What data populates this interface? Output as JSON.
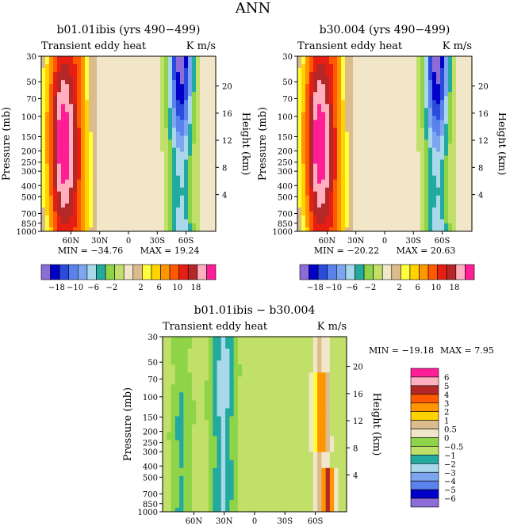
{
  "figure_title": "ANN",
  "contour_palette": [
    "#8c6cd6",
    "#0000c8",
    "#2a4bdc",
    "#5a82ec",
    "#7da6f0",
    "#a8d8ea",
    "#22aaa0",
    "#8fd448",
    "#c0e06a",
    "#f2e6c8",
    "#dcbc8c",
    "#ffff3c",
    "#ffd200",
    "#ff9600",
    "#ff5a00",
    "#e61e14",
    "#b42828",
    "#ffb0c0",
    "#ff1e96"
  ],
  "chart_data": [
    {
      "type": "heatmap",
      "title": "b01.01ibis (yrs 490−499)",
      "subtitle_left": "Transient eddy heat",
      "subtitle_right": "K m/s",
      "ylabel": "Pressure (mb)",
      "ylabel_right": "Height (km)",
      "x_ticks": [
        "60N",
        "30N",
        "0",
        "30S",
        "60S"
      ],
      "y_ticks": [
        "30",
        "50",
        "70",
        "100",
        "150",
        "200",
        "250",
        "300",
        "400",
        "500",
        "700",
        "850",
        "1000"
      ],
      "height_ticks": [
        "20",
        "16",
        "12",
        "8",
        "4"
      ],
      "min_label": "MIN = −34.76",
      "max_label": "MAX =  19.24",
      "colorbar_labels": [
        "−18",
        "−10",
        "−6",
        "−2",
        "2",
        "6",
        "10",
        "18"
      ]
    },
    {
      "type": "heatmap",
      "title": "b30.004 (yrs 490−499)",
      "subtitle_left": "Transient eddy heat",
      "subtitle_right": "K m/s",
      "ylabel": "Pressure (mb)",
      "ylabel_right": "Height (km)",
      "x_ticks": [
        "60N",
        "30N",
        "0",
        "30S",
        "60S"
      ],
      "y_ticks": [
        "30",
        "50",
        "70",
        "100",
        "150",
        "200",
        "250",
        "300",
        "400",
        "500",
        "700",
        "850",
        "1000"
      ],
      "height_ticks": [
        "20",
        "16",
        "12",
        "8",
        "4"
      ],
      "min_label": "MIN = −20.22",
      "max_label": "MAX =  20.63",
      "colorbar_labels": [
        "−18",
        "−10",
        "−6",
        "−2",
        "2",
        "6",
        "10",
        "18"
      ]
    },
    {
      "type": "heatmap",
      "title": "b01.01ibis − b30.004",
      "subtitle_left": "Transient eddy heat",
      "subtitle_right": "K m/s",
      "ylabel": "Pressure (mb)",
      "ylabel_right": "Height (km)",
      "x_ticks": [
        "60N",
        "30N",
        "0",
        "30S",
        "60S"
      ],
      "y_ticks": [
        "30",
        "50",
        "70",
        "100",
        "150",
        "200",
        "250",
        "300",
        "400",
        "500",
        "700",
        "850",
        "1000"
      ],
      "height_ticks": [
        "20",
        "16",
        "12",
        "8",
        "4"
      ],
      "min_label": "MIN = −19.18",
      "max_label": "MAX =    7.95",
      "colorbar_labels": [
        "6",
        "5",
        "4",
        "3",
        "2",
        "1",
        "0.5",
        "0",
        "−0.5",
        "−1",
        "−2",
        "−3",
        "−4",
        "−5",
        "−6"
      ],
      "colorbar_colors": [
        "#ff1e96",
        "#ffb0c0",
        "#b42828",
        "#ff5a00",
        "#ff9600",
        "#ffd200",
        "#dcbc8c",
        "#f2e6c8",
        "#8fd448",
        "#c0e06a",
        "#22aaa0",
        "#a8d8ea",
        "#7da6f0",
        "#5a82ec",
        "#0000c8",
        "#8c6cd6"
      ]
    }
  ]
}
